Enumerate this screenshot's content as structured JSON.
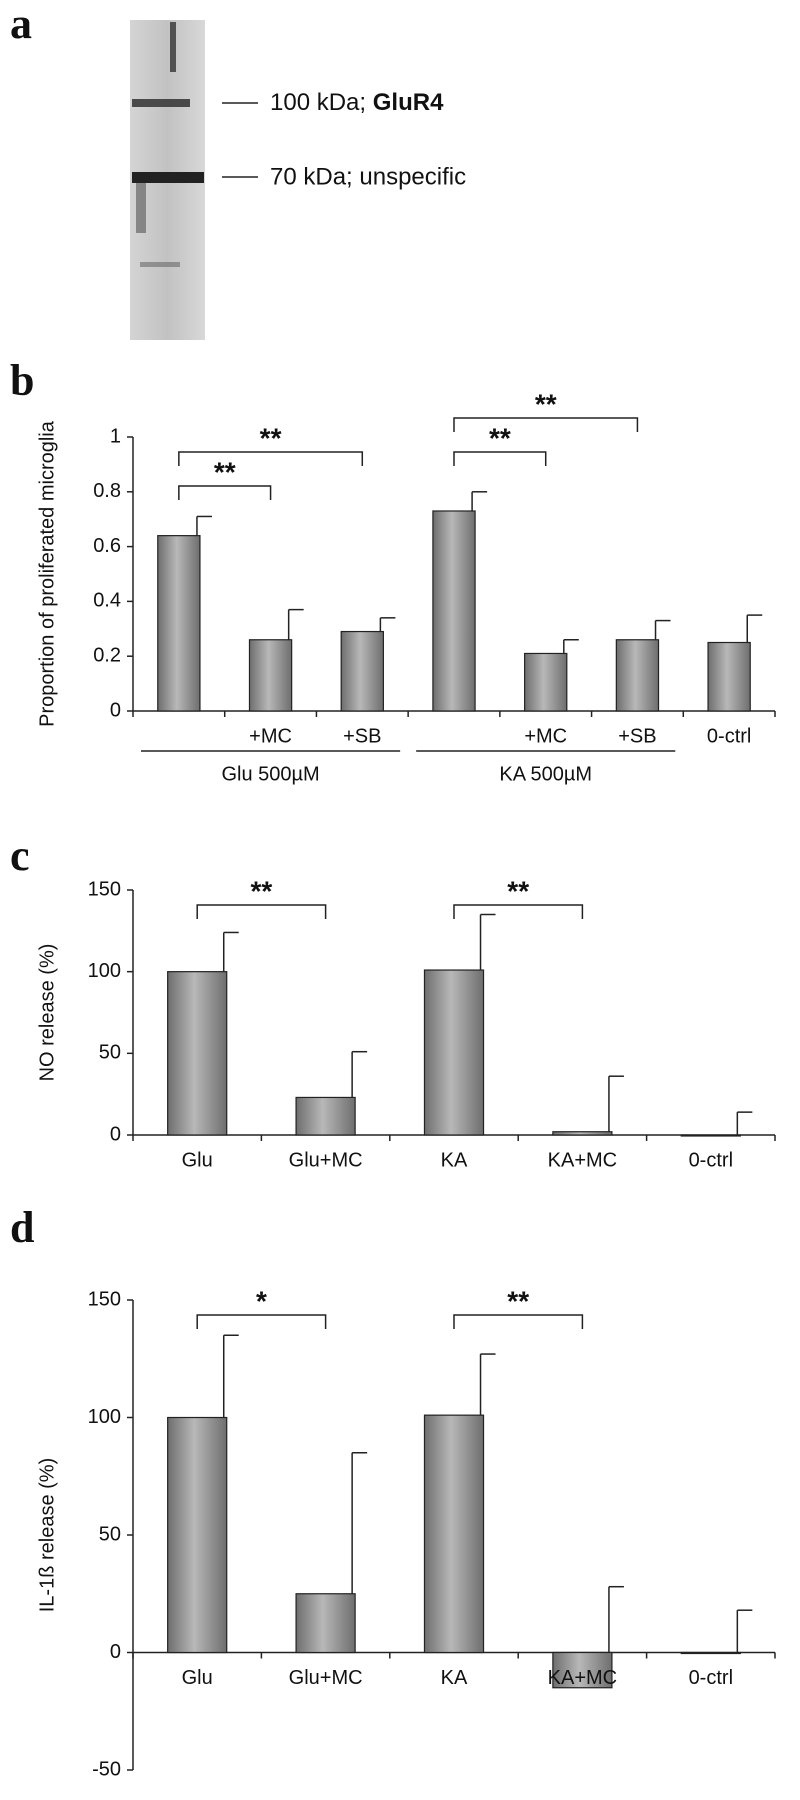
{
  "blot": {
    "panel_label": "a",
    "markers": [
      {
        "label": "100 kDa; ",
        "name": "GluR4"
      },
      {
        "label": "70 kDa; unspecific"
      }
    ]
  },
  "chart_data": [
    {
      "type": "bar",
      "panel_label": "b",
      "ylabel": "Proportion of proliferated microglia",
      "categories": [
        null,
        "+MC",
        "+SB",
        null,
        "+MC",
        "+SB",
        "0-ctrl"
      ],
      "groups": [
        "Glu 500µM",
        "KA 500µM"
      ],
      "values": [
        0.64,
        0.26,
        0.29,
        0.73,
        0.21,
        0.26,
        0.25
      ],
      "errors": [
        0.07,
        0.11,
        0.05,
        0.07,
        0.05,
        0.07,
        0.1
      ],
      "color": "#6e6e6e",
      "ylim": [
        0,
        1
      ],
      "yticks": [
        0,
        0.2,
        0.4,
        0.6,
        0.8,
        1
      ],
      "annotations": [
        {
          "text": "**"
        },
        {
          "text": "**"
        },
        {
          "text": "**"
        },
        {
          "text": "**"
        }
      ]
    },
    {
      "type": "bar",
      "panel_label": "c",
      "ylabel": "NO release (%)",
      "categories": [
        "Glu",
        "Glu+MC",
        "KA",
        "KA+MC",
        "0-ctrl"
      ],
      "values": [
        100,
        23,
        101,
        2,
        0
      ],
      "errors": [
        24,
        28,
        34,
        34,
        14
      ],
      "color": "#6e6e6e",
      "ylim": [
        0,
        150
      ],
      "yticks": [
        0,
        50,
        100,
        150
      ],
      "annotations": [
        {
          "text": "**"
        },
        {
          "text": "**"
        }
      ]
    },
    {
      "type": "bar",
      "panel_label": "d",
      "ylabel": "IL-1ß release (%)",
      "categories": [
        "Glu",
        "Glu+MC",
        "KA",
        "KA+MC",
        "0-ctrl"
      ],
      "values": [
        100,
        25,
        101,
        -15,
        0
      ],
      "errors": [
        35,
        60,
        26,
        43,
        18
      ],
      "color": "#6e6e6e",
      "ylim": [
        -50,
        150
      ],
      "yticks": [
        -50,
        0,
        50,
        100,
        150
      ],
      "annotations": [
        {
          "text": "*"
        },
        {
          "text": "**"
        }
      ]
    }
  ]
}
